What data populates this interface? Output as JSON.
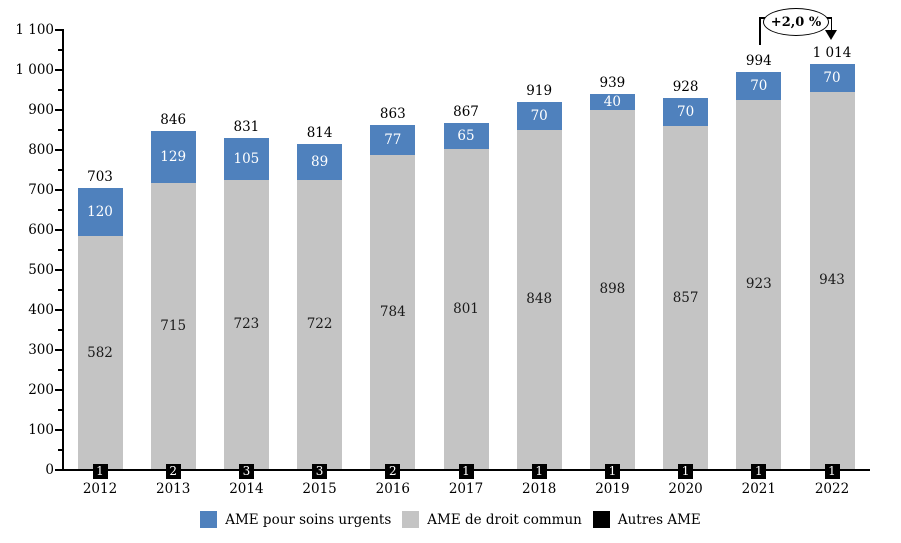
{
  "chart_data": {
    "type": "bar",
    "stacked": true,
    "title": "",
    "categories": [
      "2012",
      "2013",
      "2014",
      "2015",
      "2016",
      "2017",
      "2018",
      "2019",
      "2020",
      "2021",
      "2022"
    ],
    "series": [
      {
        "name": "AME pour soins urgents",
        "color": "#4F81BD",
        "label_color": "#FFFFFF",
        "values": [
          120,
          129,
          105,
          89,
          77,
          65,
          70,
          40,
          70,
          70,
          70
        ]
      },
      {
        "name": "AME de droit commun",
        "color": "#C4C4C4",
        "label_color": "#1A1A1A",
        "values": [
          582,
          715,
          723,
          722,
          784,
          801,
          848,
          898,
          857,
          923,
          943
        ]
      },
      {
        "name": "Autres AME",
        "color": "#000000",
        "label_color": "#FFFFFF",
        "values": [
          1,
          2,
          3,
          3,
          2,
          1,
          1,
          1,
          1,
          1,
          1
        ]
      }
    ],
    "totals_display": [
      "703",
      "846",
      "831",
      "814",
      "863",
      "867",
      "919",
      "939",
      "928",
      "994",
      "1 014"
    ],
    "y_axis": {
      "min": 0,
      "max": 1100,
      "tick_step": 100,
      "minor_tick_step": 50,
      "tick_labels": [
        "0",
        "100",
        "200",
        "300",
        "400",
        "500",
        "600",
        "700",
        "800",
        "900",
        "1 000",
        "1 100"
      ]
    },
    "grid": false,
    "legend_position": "bottom",
    "annotation": {
      "text": "+2,0 %",
      "from_category": "2021",
      "to_category": "2022"
    }
  },
  "legend": {
    "items": [
      {
        "label": "AME pour soins urgents",
        "color": "#4F81BD"
      },
      {
        "label": "AME de droit commun",
        "color": "#C4C4C4"
      },
      {
        "label": "Autres AME",
        "color": "#000000"
      }
    ]
  },
  "annotation": {
    "label": "+2,0 %"
  }
}
